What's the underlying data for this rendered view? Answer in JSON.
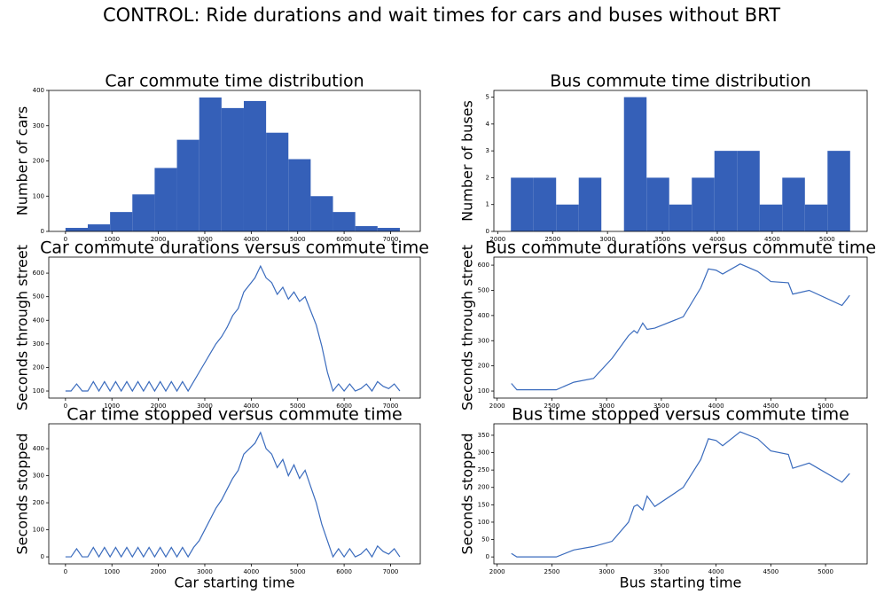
{
  "title": "CONTROL: Ride durations and wait times for cars and buses without BRT",
  "chart_data": [
    {
      "type": "histogram",
      "title": "Car commute time distribution",
      "y_label": "Number of cars",
      "color": "#3560b8",
      "bins": [
        0,
        480,
        960,
        1440,
        1920,
        2400,
        2880,
        3360,
        3840,
        4320,
        4800,
        5280,
        5760,
        6240,
        6720,
        7200
      ],
      "values": [
        10,
        20,
        55,
        105,
        180,
        260,
        380,
        350,
        370,
        280,
        205,
        100,
        55,
        15,
        10
      ],
      "xlim": [
        -360,
        7640
      ],
      "xticks": [
        0,
        1000,
        2000,
        3000,
        4000,
        5000,
        6000,
        7000
      ],
      "ylim": [
        0,
        400
      ],
      "yticks": [
        0,
        100,
        200,
        300,
        400
      ]
    },
    {
      "type": "histogram",
      "title": "Bus commute time distribution",
      "y_label": "Number of buses",
      "color": "#3560b8",
      "bins": [
        2120,
        2326,
        2532,
        2738,
        2944,
        3150,
        3356,
        3562,
        3768,
        3974,
        4180,
        4386,
        4592,
        4798,
        5004,
        5210
      ],
      "values": [
        2,
        2,
        1,
        2,
        0,
        5,
        2,
        1,
        2,
        3,
        3,
        1,
        2,
        1,
        3
      ],
      "xlim": [
        1965,
        5365
      ],
      "xticks": [
        2000,
        2500,
        3000,
        3500,
        4000,
        4500,
        5000
      ],
      "ylim": [
        0,
        5.25
      ],
      "yticks": [
        0,
        1,
        2,
        3,
        4,
        5
      ]
    },
    {
      "type": "line",
      "title": "Car commute durations versus commute time",
      "y_label": "Seconds through street",
      "color": "#3a6bbd",
      "x": [
        0,
        120,
        240,
        360,
        480,
        600,
        720,
        840,
        960,
        1080,
        1200,
        1320,
        1440,
        1560,
        1680,
        1800,
        1920,
        2040,
        2160,
        2280,
        2400,
        2520,
        2640,
        2760,
        2880,
        3000,
        3120,
        3240,
        3360,
        3480,
        3600,
        3720,
        3840,
        3960,
        4080,
        4200,
        4320,
        4440,
        4560,
        4680,
        4800,
        4920,
        5040,
        5160,
        5280,
        5400,
        5520,
        5640,
        5760,
        5880,
        6000,
        6120,
        6240,
        6360,
        6480,
        6600,
        6720,
        6840,
        6960,
        7080,
        7200
      ],
      "values": [
        100,
        100,
        130,
        100,
        100,
        140,
        100,
        140,
        100,
        140,
        100,
        140,
        100,
        140,
        100,
        140,
        100,
        140,
        100,
        140,
        100,
        140,
        100,
        140,
        180,
        220,
        260,
        300,
        330,
        370,
        420,
        450,
        520,
        550,
        580,
        630,
        580,
        560,
        510,
        540,
        490,
        520,
        480,
        500,
        440,
        380,
        290,
        180,
        100,
        130,
        100,
        130,
        100,
        110,
        130,
        100,
        140,
        120,
        110,
        130,
        100
      ],
      "xlim": [
        -360,
        7640
      ],
      "xticks": [
        0,
        1000,
        2000,
        3000,
        4000,
        5000,
        6000,
        7000
      ],
      "ylim": [
        70,
        668
      ],
      "yticks": [
        100,
        200,
        300,
        400,
        500,
        600
      ]
    },
    {
      "type": "line",
      "title": "Bus commute durations versus commute time",
      "y_label": "Seconds through street",
      "color": "#3a6bbd",
      "x": [
        2130,
        2180,
        2300,
        2540,
        2700,
        2880,
        3050,
        3200,
        3250,
        3280,
        3330,
        3370,
        3440,
        3700,
        3860,
        3930,
        4000,
        4060,
        4220,
        4380,
        4500,
        4660,
        4700,
        4850,
        5150,
        5220
      ],
      "values": [
        130,
        105,
        105,
        105,
        135,
        150,
        230,
        320,
        340,
        330,
        370,
        345,
        350,
        395,
        510,
        585,
        580,
        565,
        605,
        575,
        535,
        530,
        485,
        500,
        440,
        480
      ],
      "xlim": [
        1970,
        5380
      ],
      "xticks": [
        2000,
        2500,
        3000,
        3500,
        4000,
        4500,
        5000
      ],
      "ylim": [
        72,
        632
      ],
      "yticks": [
        100,
        200,
        300,
        400,
        500,
        600
      ]
    },
    {
      "type": "line",
      "title": "Car time stopped versus commute time",
      "y_label": "Seconds stopped",
      "x_label": "Car starting time",
      "color": "#3a6bbd",
      "x": [
        0,
        120,
        240,
        360,
        480,
        600,
        720,
        840,
        960,
        1080,
        1200,
        1320,
        1440,
        1560,
        1680,
        1800,
        1920,
        2040,
        2160,
        2280,
        2400,
        2520,
        2640,
        2760,
        2880,
        3000,
        3120,
        3240,
        3360,
        3480,
        3600,
        3720,
        3840,
        3960,
        4080,
        4200,
        4320,
        4440,
        4560,
        4680,
        4800,
        4920,
        5040,
        5160,
        5280,
        5400,
        5520,
        5640,
        5760,
        5880,
        6000,
        6120,
        6240,
        6360,
        6480,
        6600,
        6720,
        6840,
        6960,
        7080,
        7200
      ],
      "values": [
        0,
        0,
        30,
        0,
        0,
        35,
        0,
        35,
        0,
        35,
        0,
        35,
        0,
        35,
        0,
        35,
        0,
        35,
        0,
        35,
        0,
        35,
        0,
        35,
        60,
        100,
        140,
        180,
        210,
        250,
        290,
        320,
        380,
        400,
        420,
        460,
        400,
        380,
        330,
        360,
        300,
        340,
        290,
        320,
        260,
        200,
        120,
        60,
        0,
        30,
        0,
        30,
        0,
        10,
        30,
        0,
        40,
        20,
        10,
        30,
        0
      ],
      "xlim": [
        -360,
        7640
      ],
      "xticks": [
        0,
        1000,
        2000,
        3000,
        4000,
        5000,
        6000,
        7000
      ],
      "ylim": [
        -26,
        492
      ],
      "yticks": [
        0,
        100,
        200,
        300,
        400
      ]
    },
    {
      "type": "line",
      "title": "Bus time stopped versus commute time",
      "y_label": "Seconds stopped",
      "x_label": "Bus starting time",
      "color": "#3a6bbd",
      "x": [
        2130,
        2180,
        2300,
        2540,
        2700,
        2880,
        3050,
        3200,
        3250,
        3280,
        3330,
        3370,
        3440,
        3700,
        3860,
        3930,
        4000,
        4060,
        4220,
        4380,
        4500,
        4660,
        4700,
        4850,
        5150,
        5220
      ],
      "values": [
        10,
        0,
        0,
        0,
        20,
        30,
        45,
        100,
        145,
        150,
        135,
        175,
        145,
        200,
        280,
        340,
        335,
        320,
        360,
        340,
        305,
        295,
        255,
        270,
        215,
        240
      ],
      "xlim": [
        1970,
        5380
      ],
      "xticks": [
        2000,
        2500,
        3000,
        3500,
        4000,
        4500,
        5000
      ],
      "ylim": [
        -20,
        383
      ],
      "yticks": [
        0,
        50,
        100,
        150,
        200,
        250,
        300,
        350
      ]
    }
  ]
}
